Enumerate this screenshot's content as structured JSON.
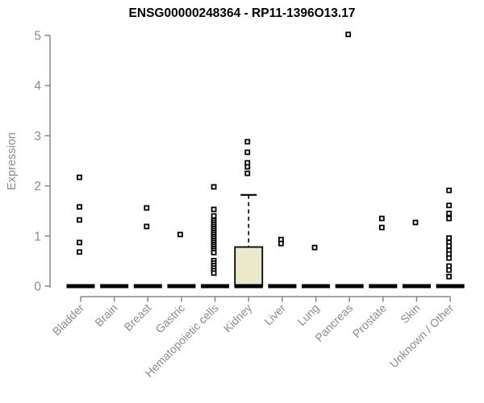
{
  "chart_data": {
    "type": "boxplot",
    "title": "ENSG00000248364 - RP11-1396O13.17",
    "ylabel": "Expression",
    "xlabel": "",
    "ylim": [
      0,
      5
    ],
    "yticks": [
      0,
      1,
      2,
      3,
      4,
      5
    ],
    "grid": false,
    "legend": "none",
    "axis_color": "#878787",
    "label_color": "#8b8b8b",
    "point_color": "#000000",
    "box_fill_color": "#ece8cb",
    "categories": [
      "Bladder",
      "Brain",
      "Breast",
      "Gastric",
      "Hematopoietic cells",
      "Kidney",
      "Liver",
      "Lung",
      "Pancreas",
      "Prostate",
      "Skin",
      "Unknown / Other"
    ],
    "boxes": [
      {
        "label": "Bladder",
        "median": 0,
        "q1": 0,
        "q3": 0,
        "whisker_low": 0,
        "whisker_high": 0,
        "outliers": [
          2.17,
          1.58,
          1.32,
          0.87,
          0.68
        ]
      },
      {
        "label": "Brain",
        "median": 0,
        "q1": 0,
        "q3": 0,
        "whisker_low": 0,
        "whisker_high": 0,
        "outliers": []
      },
      {
        "label": "Breast",
        "median": 0,
        "q1": 0,
        "q3": 0,
        "whisker_low": 0,
        "whisker_high": 0,
        "outliers": [
          1.56,
          1.19
        ]
      },
      {
        "label": "Gastric",
        "median": 0,
        "q1": 0,
        "q3": 0,
        "whisker_low": 0,
        "whisker_high": 0,
        "outliers": [
          1.03
        ]
      },
      {
        "label": "Hematopoietic cells",
        "median": 0,
        "q1": 0,
        "q3": 0,
        "whisker_low": 0,
        "whisker_high": 0,
        "outliers": [
          1.98,
          1.53,
          1.4,
          1.31,
          1.27,
          1.23,
          1.19,
          1.15,
          1.11,
          1.07,
          1.03,
          0.99,
          0.95,
          0.91,
          0.87,
          0.83,
          0.79,
          0.75,
          0.71,
          0.67,
          0.51,
          0.46,
          0.41,
          0.36,
          0.31,
          0.26
        ]
      },
      {
        "label": "Kidney",
        "median": 0,
        "q1": 0,
        "q3": 0.78,
        "whisker_low": 0,
        "whisker_high": 1.82,
        "outliers": [
          2.88,
          2.67,
          2.46,
          2.38,
          2.25
        ]
      },
      {
        "label": "Liver",
        "median": 0,
        "q1": 0,
        "q3": 0,
        "whisker_low": 0,
        "whisker_high": 0,
        "outliers": [
          0.93,
          0.85
        ]
      },
      {
        "label": "Lung",
        "median": 0,
        "q1": 0,
        "q3": 0,
        "whisker_low": 0,
        "whisker_high": 0,
        "outliers": [
          0.77
        ]
      },
      {
        "label": "Pancreas",
        "median": 0,
        "q1": 0,
        "q3": 0,
        "whisker_low": 0,
        "whisker_high": 0,
        "outliers": [
          5.02
        ]
      },
      {
        "label": "Prostate",
        "median": 0,
        "q1": 0,
        "q3": 0,
        "whisker_low": 0,
        "whisker_high": 0,
        "outliers": [
          1.35,
          1.17
        ]
      },
      {
        "label": "Skin",
        "median": 0,
        "q1": 0,
        "q3": 0,
        "whisker_low": 0,
        "whisker_high": 0,
        "outliers": [
          1.27
        ]
      },
      {
        "label": "Unknown / Other",
        "median": 0,
        "q1": 0,
        "q3": 0,
        "whisker_low": 0,
        "whisker_high": 0,
        "outliers": [
          1.91,
          1.61,
          1.45,
          1.35,
          0.96,
          0.87,
          0.8,
          0.71,
          0.64,
          0.56,
          0.4,
          0.32,
          0.19
        ]
      }
    ]
  }
}
